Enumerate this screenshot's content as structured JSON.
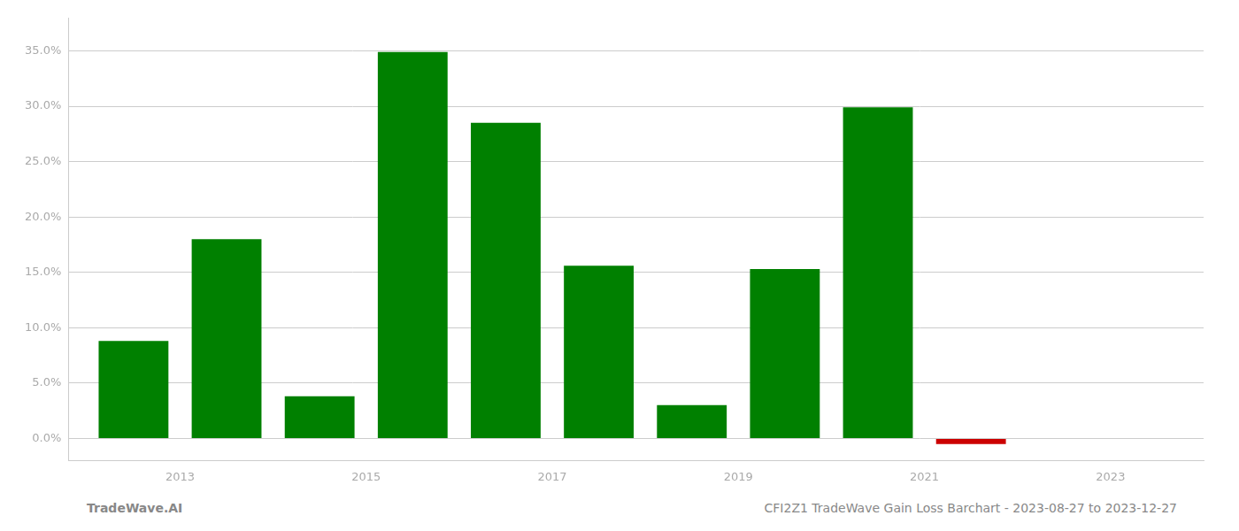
{
  "chart_data": {
    "type": "bar",
    "x": [
      2013,
      2014,
      2015,
      2016,
      2017,
      2018,
      2019,
      2020,
      2021,
      2022,
      2023
    ],
    "values": [
      0.088,
      0.18,
      0.038,
      0.349,
      0.285,
      0.156,
      0.03,
      0.153,
      0.299,
      -0.005,
      0.0
    ],
    "colors": [
      "#008000",
      "#008000",
      "#008000",
      "#008000",
      "#008000",
      "#008000",
      "#008000",
      "#008000",
      "#008000",
      "#cc0000",
      "#008000"
    ],
    "xlim": [
      2012.3,
      2024.5
    ],
    "xticks": [
      {
        "value": 2013.5,
        "label": "2013"
      },
      {
        "value": 2015.5,
        "label": "2015"
      },
      {
        "value": 2017.5,
        "label": "2017"
      },
      {
        "value": 2019.5,
        "label": "2019"
      },
      {
        "value": 2021.5,
        "label": "2021"
      },
      {
        "value": 2023.5,
        "label": "2023"
      }
    ],
    "ylim": [
      -0.02,
      0.38
    ],
    "yticks": [
      {
        "value": 0.0,
        "label": "0.0%"
      },
      {
        "value": 0.05,
        "label": "5.0%"
      },
      {
        "value": 0.1,
        "label": "10.0%"
      },
      {
        "value": 0.15,
        "label": "15.0%"
      },
      {
        "value": 0.2,
        "label": "20.0%"
      },
      {
        "value": 0.25,
        "label": "25.0%"
      },
      {
        "value": 0.3,
        "label": "30.0%"
      },
      {
        "value": 0.35,
        "label": "35.0%"
      }
    ],
    "grid": true,
    "annotations": [
      "TradeWave.AI",
      "CFI2Z1 TradeWave Gain Loss Barchart - 2023-08-27 to 2023-12-27"
    ]
  }
}
